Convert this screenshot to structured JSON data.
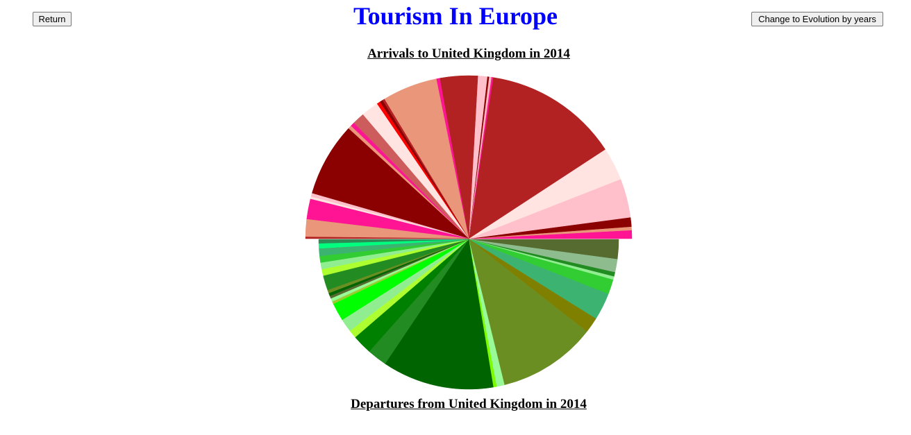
{
  "page": {
    "title": "Tourism In Europe",
    "return_label": "Return",
    "evolution_label": "Change to Evolution by years"
  },
  "chart_data": [
    {
      "type": "pie",
      "half": "top",
      "title": "Arrivals to United Kingdom in 2014",
      "start_angle_deg": 0,
      "direction": "counterclockwise",
      "slices": [
        {
          "value": 1.45,
          "color": "#ff1493"
        },
        {
          "value": 0.6,
          "color": "#e9967a"
        },
        {
          "value": 1.6,
          "color": "#8b0000"
        },
        {
          "value": 6.7,
          "color": "#ffc0cb"
        },
        {
          "value": 5.7,
          "color": "#ffe4e1"
        },
        {
          "value": 23.3,
          "color": "#b22222"
        },
        {
          "value": 0.3,
          "color": "#ff1493"
        },
        {
          "value": 0.4,
          "color": "#ffb6c1"
        },
        {
          "value": 0.3,
          "color": "#8b0000"
        },
        {
          "value": 1.6,
          "color": "#ffc0cb"
        },
        {
          "value": 6.5,
          "color": "#b22222"
        },
        {
          "value": 0.6,
          "color": "#ff1493"
        },
        {
          "value": 9.5,
          "color": "#e9967a"
        },
        {
          "value": 0.4,
          "color": "#b22222"
        },
        {
          "value": 0.5,
          "color": "#8b0000"
        },
        {
          "value": 0.6,
          "color": "#ff0000"
        },
        {
          "value": 3.0,
          "color": "#ffe4e1"
        },
        {
          "value": 2.1,
          "color": "#cd5c5c"
        },
        {
          "value": 0.7,
          "color": "#ff1493"
        },
        {
          "value": 0.6,
          "color": "#e9967a"
        },
        {
          "value": 12.75,
          "color": "#8b0000"
        },
        {
          "value": 0.6,
          "color": "#ffc0cb"
        },
        {
          "value": 0.4,
          "color": "#ffe4e1"
        },
        {
          "value": 3.5,
          "color": "#ff1493"
        },
        {
          "value": 3.0,
          "color": "#e9967a"
        },
        {
          "value": 0.3,
          "color": "#b22222"
        }
      ]
    },
    {
      "type": "pie",
      "half": "bottom",
      "title": "Departures from United Kingdom in 2014",
      "start_angle_deg": 0,
      "direction": "clockwise",
      "slices": [
        {
          "value": 6.0,
          "color": "#556b2f"
        },
        {
          "value": 4.0,
          "color": "#8fbc8f"
        },
        {
          "value": 1.3,
          "color": "#228b22"
        },
        {
          "value": 1.0,
          "color": "#90ee90"
        },
        {
          "value": 4.5,
          "color": "#32cd32"
        },
        {
          "value": 8.3,
          "color": "#3cb371"
        },
        {
          "value": 4.7,
          "color": "#808000"
        },
        {
          "value": 30.0,
          "color": "#6b8e23"
        },
        {
          "value": 2.4,
          "color": "#98fb98"
        },
        {
          "value": 1.0,
          "color": "#7cfc00"
        },
        {
          "value": 34.0,
          "color": "#006400"
        },
        {
          "value": 6.0,
          "color": "#228b22"
        },
        {
          "value": 6.0,
          "color": "#008000"
        },
        {
          "value": 2.5,
          "color": "#adff2f"
        },
        {
          "value": 4.0,
          "color": "#90ee90"
        },
        {
          "value": 5.5,
          "color": "#00ff00"
        },
        {
          "value": 0.8,
          "color": "#9acd32"
        },
        {
          "value": 1.0,
          "color": "#98fb98"
        },
        {
          "value": 0.8,
          "color": "#556b2f"
        },
        {
          "value": 0.9,
          "color": "#006400"
        },
        {
          "value": 1.0,
          "color": "#6b8e23"
        },
        {
          "value": 4.5,
          "color": "#228b22"
        },
        {
          "value": 2.0,
          "color": "#adff2f"
        },
        {
          "value": 2.0,
          "color": "#90ee90"
        },
        {
          "value": 2.0,
          "color": "#32cd32"
        },
        {
          "value": 2.3,
          "color": "#3cb371"
        },
        {
          "value": 1.5,
          "color": "#00ff7f"
        },
        {
          "value": 1.2,
          "color": "#2e8b57"
        }
      ]
    }
  ]
}
